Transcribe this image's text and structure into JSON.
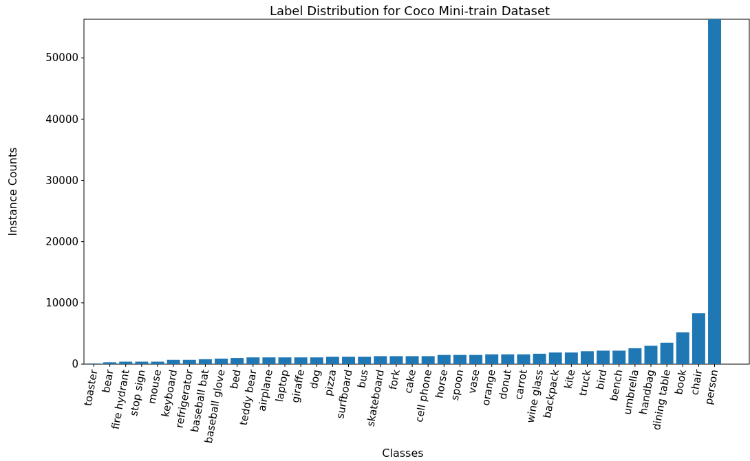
{
  "chart_data": {
    "type": "bar",
    "title": "Label Distribution for Coco Mini-train Dataset",
    "xlabel": "Classes",
    "ylabel": "Instance Counts",
    "categories": [
      "toaster",
      "bear",
      "fire hydrant",
      "stop sign",
      "mouse",
      "keyboard",
      "refrigerator",
      "baseball bat",
      "baseball glove",
      "bed",
      "teddy bear",
      "airplane",
      "laptop",
      "giraffe",
      "dog",
      "pizza",
      "surfboard",
      "bus",
      "skateboard",
      "fork",
      "cake",
      "cell phone",
      "horse",
      "spoon",
      "vase",
      "orange",
      "donut",
      "carrot",
      "wine glass",
      "backpack",
      "kite",
      "truck",
      "bird",
      "bench",
      "umbrella",
      "handbag",
      "dining table",
      "book",
      "chair",
      "person"
    ],
    "values": [
      100,
      300,
      400,
      400,
      400,
      700,
      700,
      800,
      900,
      1000,
      1100,
      1100,
      1100,
      1100,
      1100,
      1200,
      1200,
      1200,
      1300,
      1300,
      1300,
      1300,
      1500,
      1500,
      1500,
      1600,
      1600,
      1600,
      1700,
      1900,
      1900,
      2100,
      2200,
      2200,
      2600,
      3000,
      3500,
      5200,
      8300,
      56300
    ],
    "color": "#1f77b4",
    "ylim": [
      0,
      56300
    ],
    "yticks": [
      0,
      10000,
      20000,
      30000,
      40000,
      50000
    ],
    "grid": false
  }
}
